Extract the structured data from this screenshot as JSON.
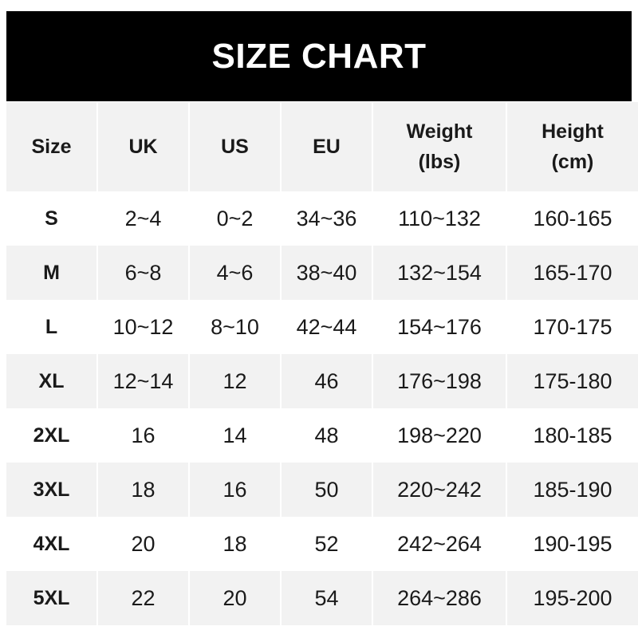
{
  "title": "SIZE CHART",
  "headers": [
    {
      "line1": "Size",
      "line2": ""
    },
    {
      "line1": "UK",
      "line2": ""
    },
    {
      "line1": "US",
      "line2": ""
    },
    {
      "line1": "EU",
      "line2": ""
    },
    {
      "line1": "Weight",
      "line2": "(lbs)"
    },
    {
      "line1": "Height",
      "line2": "(cm)"
    }
  ],
  "rows": [
    [
      "S",
      "2~4",
      "0~2",
      "34~36",
      "110~132",
      "160-165"
    ],
    [
      "M",
      "6~8",
      "4~6",
      "38~40",
      "132~154",
      "165-170"
    ],
    [
      "L",
      "10~12",
      "8~10",
      "42~44",
      "154~176",
      "170-175"
    ],
    [
      "XL",
      "12~14",
      "12",
      "46",
      "176~198",
      "175-180"
    ],
    [
      "2XL",
      "16",
      "14",
      "48",
      "198~220",
      "180-185"
    ],
    [
      "3XL",
      "18",
      "16",
      "50",
      "220~242",
      "185-190"
    ],
    [
      "4XL",
      "20",
      "18",
      "52",
      "242~264",
      "190-195"
    ],
    [
      "5XL",
      "22",
      "20",
      "54",
      "264~286",
      "195-200"
    ]
  ],
  "colors": {
    "banner": "#000000",
    "header_bg": "#f2f2f2",
    "stripe_bg": "#f2f2f2",
    "text": "#1a1a1a"
  }
}
